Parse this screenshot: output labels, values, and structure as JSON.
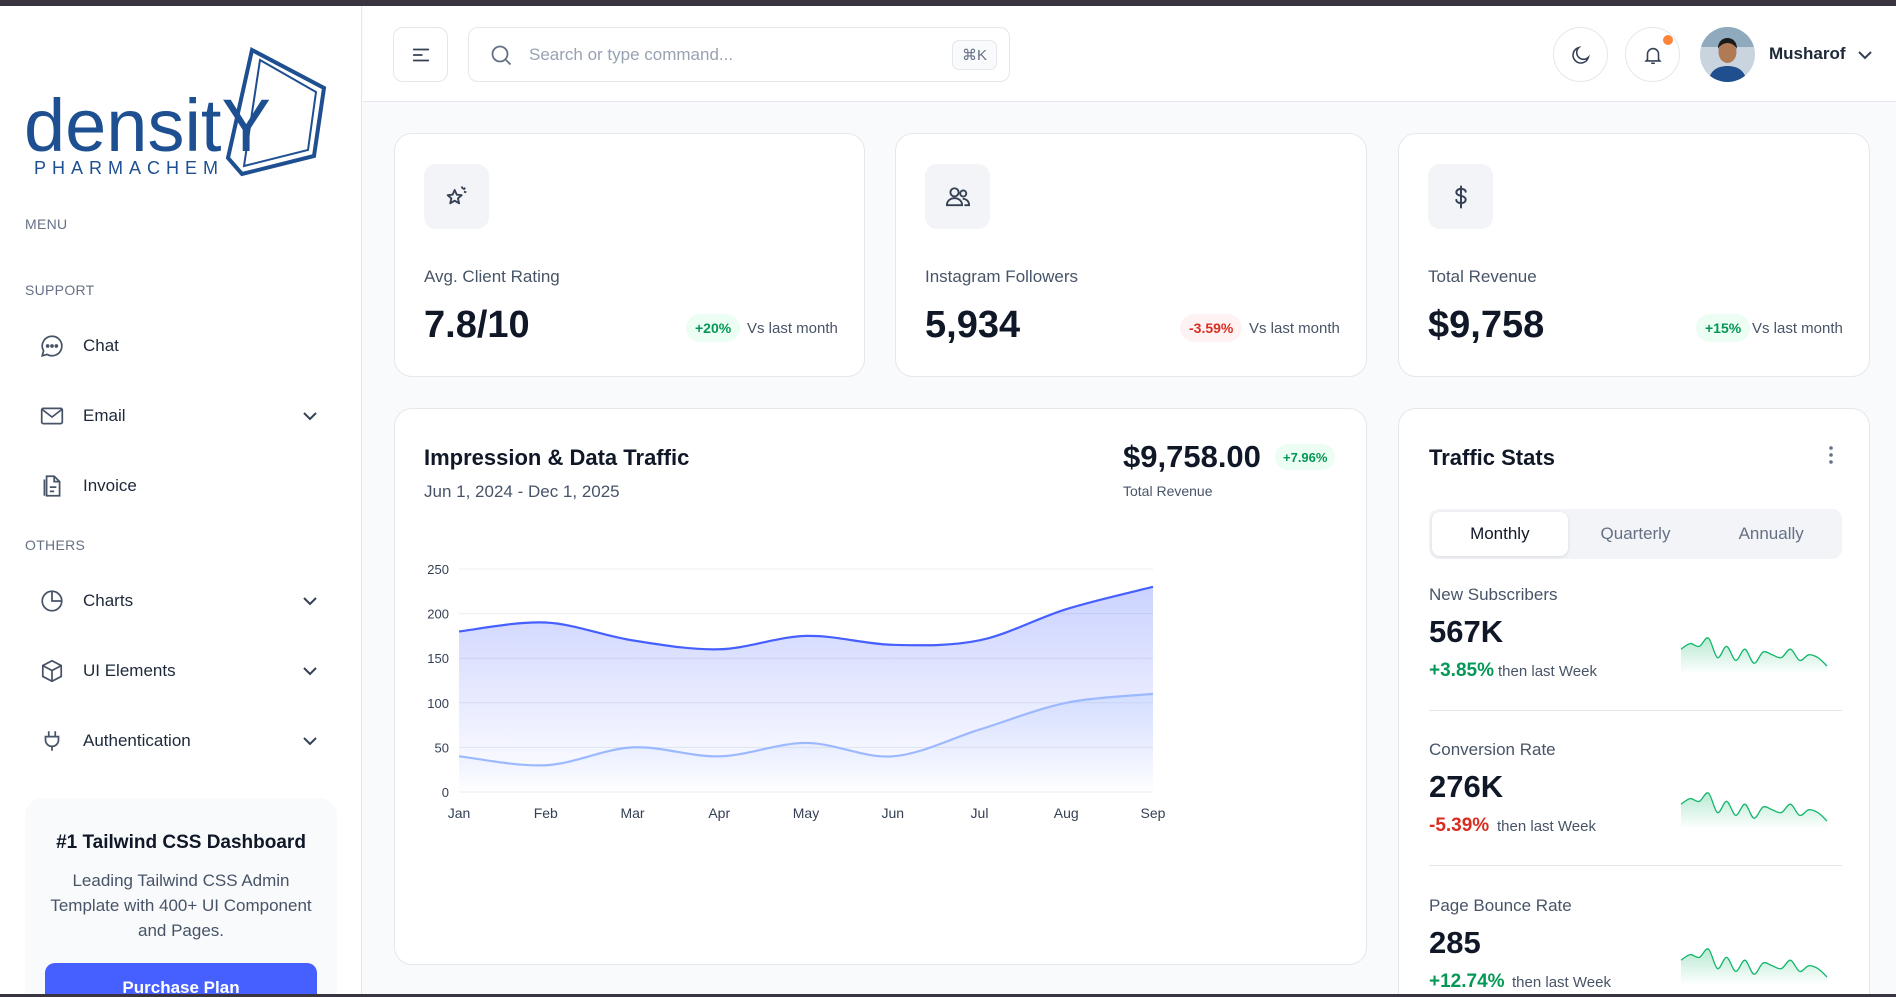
{
  "brand": {
    "line1": "densitY",
    "line2": "PHARMACHEM"
  },
  "sidebar": {
    "menu_title": "MENU",
    "support_title": "SUPPORT",
    "others_title": "OTHERS",
    "items": [
      {
        "label": "Chat",
        "icon": "chat-icon"
      },
      {
        "label": "Email",
        "icon": "mail-icon"
      },
      {
        "label": "Invoice",
        "icon": "invoice-icon"
      },
      {
        "label": "Charts",
        "icon": "pie-chart-icon"
      },
      {
        "label": "UI Elements",
        "icon": "box-icon"
      },
      {
        "label": "Authentication",
        "icon": "plug-icon"
      }
    ],
    "promo": {
      "title": "#1 Tailwind CSS Dashboard",
      "text": "Leading Tailwind CSS Admin Template with 400+ UI Component and Pages.",
      "button": "Purchase Plan"
    }
  },
  "header": {
    "search_placeholder": "Search or type command...",
    "search_shortcut": "⌘K",
    "user_name": "Musharof"
  },
  "stats": [
    {
      "label": "Avg. Client Rating",
      "value": "7.8/10",
      "change": "+20%",
      "trend": "up",
      "vs": "Vs last month",
      "icon": "star-sparkle-icon"
    },
    {
      "label": "Instagram Followers",
      "value": "5,934",
      "change": "-3.59%",
      "trend": "down",
      "vs": "Vs last month",
      "icon": "users-icon"
    },
    {
      "label": "Total Revenue",
      "value": "$9,758",
      "change": "+15%",
      "trend": "up",
      "vs": "Vs last month",
      "icon": "dollar-icon"
    }
  ],
  "traffic_chart": {
    "title": "Impression & Data Traffic",
    "range": "Jun 1, 2024 - Dec 1, 2025",
    "amount": "$9,758.00",
    "amount_change": "+7.96%",
    "amount_label": "Total Revenue"
  },
  "chart_data": {
    "type": "area",
    "categories": [
      "Jan",
      "Feb",
      "Mar",
      "Apr",
      "May",
      "Jun",
      "Jul",
      "Aug",
      "Sep"
    ],
    "series": [
      {
        "values": [
          180,
          190,
          170,
          160,
          175,
          165,
          170,
          205,
          230
        ],
        "color": "#465fff"
      },
      {
        "values": [
          40,
          30,
          50,
          40,
          55,
          40,
          70,
          100,
          110
        ],
        "color": "#9cb9ff"
      }
    ],
    "yticks": [
      "250",
      "200",
      "150",
      "100",
      "50",
      "0"
    ],
    "ylim": [
      0,
      250
    ],
    "grid": true
  },
  "traffic_stats": {
    "title": "Traffic Stats",
    "tabs": [
      "Monthly",
      "Quarterly",
      "Annually"
    ],
    "active_tab": "Monthly",
    "items": [
      {
        "name": "New Subscribers",
        "value": "567K",
        "change": "+3.85%",
        "trend": "up",
        "note": "then last Week"
      },
      {
        "name": "Conversion Rate",
        "value": "276K",
        "change": "-5.39%",
        "trend": "down",
        "note": "then last Week"
      },
      {
        "name": "Page Bounce Rate",
        "value": "285",
        "change": "+12.74%",
        "trend": "up",
        "note": "then last Week"
      }
    ],
    "spark": [
      22,
      26,
      24,
      30,
      16,
      24,
      14,
      22,
      12,
      20,
      18,
      16,
      22,
      14,
      18,
      16,
      10
    ]
  },
  "colors": {
    "primary": "#465fff",
    "success": "#12b76a",
    "error": "#d92d20"
  }
}
